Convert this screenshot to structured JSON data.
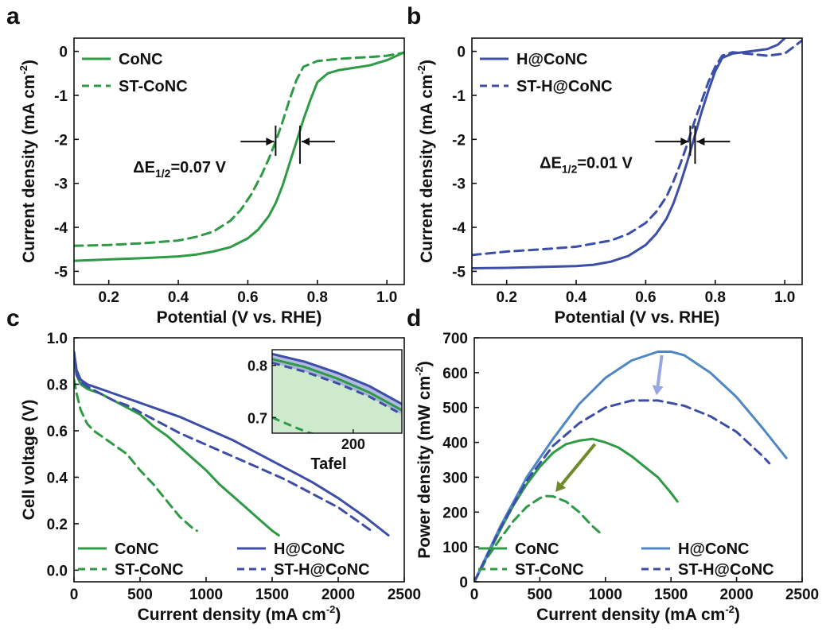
{
  "colors": {
    "green": "#2f9a45",
    "blue": "#3d4ea8",
    "blue_light": "#4f86c6",
    "arrow_green": "#6f8a2a",
    "arrow_blue": "#9aa6e0",
    "fill_green": "#c9e8c6",
    "fill_blue": "#9aa4d8",
    "axis": "#111111"
  },
  "chart_data": [
    {
      "panel": "a",
      "type": "line",
      "xlabel": "Potential (V vs. RHE)",
      "ylabel": "Current density (mA cm-2)",
      "ylabel_main": "Current density (mA cm",
      "ylabel_sup": "-2",
      "ylabel_tail": ")",
      "xlim": [
        0.1,
        1.05
      ],
      "ylim": [
        -5.3,
        0.3
      ],
      "xticks": [
        0.2,
        0.4,
        0.6,
        0.8,
        1.0
      ],
      "xtick_labels": [
        "0.2",
        "0.4",
        "0.6",
        "0.8",
        "1.0"
      ],
      "yticks": [
        0,
        -1,
        -2,
        -3,
        -4,
        -5
      ],
      "ytick_labels": [
        "0",
        "-1",
        "-2",
        "-3",
        "-4",
        "-5"
      ],
      "legend_position": "top-left",
      "annotation": {
        "prefix": "ΔE",
        "sub": "1/2",
        "suffix": "=0.07 V",
        "e1": 0.68,
        "e2": 0.75,
        "y": -2.05,
        "label_x": 0.27,
        "label_y": -2.75
      },
      "series": [
        {
          "name": "CoNC",
          "color": "#2f9a45",
          "dash": false,
          "x": [
            0.1,
            0.2,
            0.3,
            0.4,
            0.45,
            0.5,
            0.55,
            0.6,
            0.63,
            0.66,
            0.68,
            0.7,
            0.72,
            0.74,
            0.75,
            0.76,
            0.78,
            0.8,
            0.83,
            0.86,
            0.9,
            0.95,
            1.0,
            1.05
          ],
          "y": [
            -4.76,
            -4.73,
            -4.7,
            -4.66,
            -4.62,
            -4.55,
            -4.45,
            -4.25,
            -4.05,
            -3.75,
            -3.45,
            -3.05,
            -2.55,
            -2.05,
            -1.8,
            -1.55,
            -1.1,
            -0.7,
            -0.5,
            -0.43,
            -0.38,
            -0.32,
            -0.2,
            -0.02
          ]
        },
        {
          "name": "ST-CoNC",
          "color": "#2f9a45",
          "dash": true,
          "x": [
            0.1,
            0.2,
            0.3,
            0.4,
            0.45,
            0.5,
            0.55,
            0.58,
            0.61,
            0.64,
            0.66,
            0.68,
            0.7,
            0.72,
            0.74,
            0.76,
            0.8,
            0.85,
            0.9,
            0.95,
            1.0,
            1.05
          ],
          "y": [
            -4.42,
            -4.4,
            -4.36,
            -4.3,
            -4.22,
            -4.1,
            -3.85,
            -3.6,
            -3.25,
            -2.8,
            -2.45,
            -2.05,
            -1.6,
            -1.1,
            -0.65,
            -0.35,
            -0.22,
            -0.18,
            -0.15,
            -0.13,
            -0.1,
            -0.03
          ]
        }
      ]
    },
    {
      "panel": "b",
      "type": "line",
      "xlabel": "Potential (V vs. RHE)",
      "ylabel": "Current density (mA cm-2)",
      "ylabel_main": "Current density (mA cm",
      "ylabel_sup": "-2",
      "ylabel_tail": ")",
      "xlim": [
        0.1,
        1.05
      ],
      "ylim": [
        -5.3,
        0.3
      ],
      "xticks": [
        0.2,
        0.4,
        0.6,
        0.8,
        1.0
      ],
      "xtick_labels": [
        "0.2",
        "0.4",
        "0.6",
        "0.8",
        "1.0"
      ],
      "yticks": [
        0,
        -1,
        -2,
        -3,
        -4,
        -5
      ],
      "ytick_labels": [
        "0",
        "-1",
        "-2",
        "-3",
        "-4",
        "-5"
      ],
      "legend_position": "top-left",
      "annotation": {
        "prefix": "ΔE",
        "sub": "1/2",
        "suffix": "=0.01 V",
        "e1": 0.728,
        "e2": 0.742,
        "y": -2.05,
        "label_x": 0.295,
        "label_y": -2.65
      },
      "series": [
        {
          "name": "H@CoNC",
          "color": "#3d4ea8",
          "dash": false,
          "x": [
            0.1,
            0.2,
            0.3,
            0.4,
            0.45,
            0.5,
            0.55,
            0.6,
            0.63,
            0.66,
            0.68,
            0.7,
            0.72,
            0.74,
            0.76,
            0.78,
            0.8,
            0.82,
            0.85,
            0.9,
            0.95,
            0.98,
            1.0,
            1.02
          ],
          "y": [
            -4.93,
            -4.92,
            -4.9,
            -4.88,
            -4.85,
            -4.78,
            -4.65,
            -4.4,
            -4.15,
            -3.8,
            -3.45,
            -3.0,
            -2.5,
            -1.95,
            -1.4,
            -0.9,
            -0.45,
            -0.15,
            -0.05,
            0.0,
            0.05,
            0.15,
            0.3,
            0.48
          ]
        },
        {
          "name": "ST-H@CoNC",
          "color": "#3d4ea8",
          "dash": true,
          "x": [
            0.1,
            0.2,
            0.3,
            0.4,
            0.5,
            0.55,
            0.6,
            0.63,
            0.66,
            0.68,
            0.7,
            0.72,
            0.74,
            0.76,
            0.78,
            0.8,
            0.82,
            0.85,
            0.9,
            0.95,
            1.0,
            1.05
          ],
          "y": [
            -4.63,
            -4.55,
            -4.5,
            -4.44,
            -4.3,
            -4.15,
            -3.9,
            -3.65,
            -3.3,
            -2.95,
            -2.55,
            -2.1,
            -1.6,
            -1.15,
            -0.7,
            -0.35,
            -0.1,
            -0.02,
            -0.06,
            -0.1,
            -0.05,
            0.25
          ]
        }
      ]
    },
    {
      "panel": "c",
      "type": "line",
      "xlabel": "Current density (mA cm-2)",
      "ylabel": "Cell voltage (V)",
      "xlabel_main": "Current density (mA cm",
      "xlabel_sup": "-2",
      "xlabel_tail": ")",
      "xlim": [
        0,
        2500
      ],
      "ylim": [
        -0.05,
        1.0
      ],
      "xticks": [
        0,
        500,
        1000,
        1500,
        2000,
        2500
      ],
      "xtick_labels": [
        "0",
        "500",
        "1000",
        "1500",
        "2000",
        "2500"
      ],
      "yticks": [
        0.0,
        0.2,
        0.4,
        0.6,
        0.8,
        1.0
      ],
      "ytick_labels": [
        "0.0",
        "0.2",
        "0.4",
        "0.6",
        "0.8",
        "1.0"
      ],
      "legend_position": "bottom",
      "inset": {
        "label": "Tafel",
        "xlim": [
          0,
          320
        ],
        "ylim": [
          0.67,
          0.83
        ],
        "yticks": [
          0.7,
          0.8
        ],
        "ytick_labels": [
          "0.7",
          "0.8"
        ],
        "xticks": [
          200
        ],
        "xtick_labels": [
          "200"
        ]
      },
      "series": [
        {
          "name": "CoNC",
          "color": "#2f9a45",
          "dash": false,
          "x": [
            0,
            20,
            50,
            100,
            200,
            300,
            400,
            500,
            600,
            700,
            800,
            900,
            1000,
            1100,
            1200,
            1300,
            1400,
            1500,
            1550
          ],
          "y": [
            0.92,
            0.84,
            0.8,
            0.78,
            0.76,
            0.73,
            0.7,
            0.67,
            0.62,
            0.58,
            0.53,
            0.48,
            0.43,
            0.37,
            0.32,
            0.27,
            0.22,
            0.17,
            0.15
          ]
        },
        {
          "name": "ST-CoNC",
          "color": "#2f9a45",
          "dash": true,
          "x": [
            0,
            20,
            50,
            100,
            150,
            200,
            300,
            400,
            500,
            600,
            700,
            800,
            900,
            930
          ],
          "y": [
            0.82,
            0.76,
            0.69,
            0.63,
            0.6,
            0.58,
            0.54,
            0.5,
            0.43,
            0.37,
            0.3,
            0.23,
            0.18,
            0.17
          ]
        },
        {
          "name": "H@CoNC",
          "color": "#3d4ea8",
          "dash": false,
          "x": [
            0,
            20,
            50,
            100,
            200,
            400,
            600,
            800,
            1000,
            1200,
            1400,
            1600,
            1800,
            2000,
            2200,
            2380
          ],
          "y": [
            0.94,
            0.86,
            0.82,
            0.8,
            0.78,
            0.74,
            0.7,
            0.66,
            0.61,
            0.56,
            0.5,
            0.44,
            0.38,
            0.31,
            0.23,
            0.15
          ]
        },
        {
          "name": "ST-H@CoNC",
          "color": "#3d4ea8",
          "dash": true,
          "x": [
            0,
            20,
            50,
            100,
            200,
            300,
            400,
            600,
            800,
            1000,
            1200,
            1400,
            1600,
            1800,
            2000,
            2200,
            2250
          ],
          "y": [
            0.92,
            0.84,
            0.81,
            0.79,
            0.76,
            0.73,
            0.71,
            0.65,
            0.59,
            0.54,
            0.49,
            0.44,
            0.39,
            0.33,
            0.27,
            0.19,
            0.17
          ]
        }
      ],
      "inset_series": [
        {
          "name": "H@CoNC",
          "color": "#3d4ea8",
          "dash": false,
          "x": [
            0,
            80,
            160,
            240,
            320
          ],
          "y": [
            0.822,
            0.807,
            0.786,
            0.76,
            0.726
          ]
        },
        {
          "name": "ST-H@CoNC",
          "color": "#3d4ea8",
          "dash": true,
          "x": [
            0,
            80,
            160,
            240,
            320
          ],
          "y": [
            0.805,
            0.788,
            0.766,
            0.74,
            0.706
          ]
        },
        {
          "name": "CoNC",
          "color": "#2f9a45",
          "dash": false,
          "x": [
            0,
            80,
            160,
            240,
            320
          ],
          "y": [
            0.812,
            0.797,
            0.775,
            0.748,
            0.714
          ]
        },
        {
          "name": "ST-CoNC",
          "color": "#2f9a45",
          "dash": true,
          "x": [
            0,
            30,
            60,
            90,
            110
          ],
          "y": [
            0.7,
            0.69,
            0.68,
            0.671,
            0.667
          ]
        }
      ]
    },
    {
      "panel": "d",
      "type": "line",
      "xlabel": "Current density (mA cm-2)",
      "ylabel": "Power density (mW cm-2)",
      "xlabel_main": "Current density (mA cm",
      "xlabel_sup": "-2",
      "xlabel_tail": ")",
      "ylabel_main": "Power density (mW cm",
      "ylabel_sup": "-2",
      "ylabel_tail": ")",
      "xlim": [
        0,
        2500
      ],
      "ylim": [
        0,
        700
      ],
      "xticks": [
        0,
        500,
        1000,
        1500,
        2000,
        2500
      ],
      "xtick_labels": [
        "0",
        "500",
        "1000",
        "1500",
        "2000",
        "2500"
      ],
      "yticks": [
        0,
        100,
        200,
        300,
        400,
        500,
        600,
        700
      ],
      "ytick_labels": [
        "0",
        "100",
        "200",
        "300",
        "400",
        "500",
        "600",
        "700"
      ],
      "legend_position": "bottom",
      "series": [
        {
          "name": "CoNC",
          "color": "#2f9a45",
          "dash": false,
          "x": [
            0,
            100,
            200,
            300,
            400,
            500,
            600,
            700,
            800,
            900,
            1000,
            1100,
            1200,
            1300,
            1400,
            1500,
            1550
          ],
          "y": [
            0,
            75,
            150,
            220,
            280,
            330,
            370,
            395,
            405,
            410,
            400,
            385,
            360,
            330,
            300,
            255,
            230
          ]
        },
        {
          "name": "ST-CoNC",
          "color": "#2f9a45",
          "dash": true,
          "x": [
            0,
            100,
            200,
            300,
            400,
            500,
            550,
            600,
            700,
            800,
            900,
            960
          ],
          "y": [
            0,
            70,
            125,
            175,
            215,
            240,
            246,
            245,
            230,
            200,
            160,
            140
          ]
        },
        {
          "name": "H@CoNC",
          "color": "#4f86c6",
          "dash": false,
          "x": [
            0,
            200,
            400,
            600,
            800,
            1000,
            1200,
            1400,
            1500,
            1600,
            1800,
            2000,
            2200,
            2380
          ],
          "y": [
            0,
            160,
            300,
            410,
            510,
            585,
            635,
            660,
            660,
            650,
            600,
            530,
            440,
            355
          ]
        },
        {
          "name": "ST-H@CoNC",
          "color": "#3d4ea8",
          "dash": true,
          "x": [
            0,
            200,
            400,
            600,
            800,
            1000,
            1200,
            1400,
            1600,
            1800,
            2000,
            2200,
            2250
          ],
          "y": [
            0,
            155,
            290,
            390,
            455,
            500,
            520,
            520,
            505,
            475,
            430,
            360,
            340
          ]
        }
      ],
      "arrows": [
        {
          "color": "#9aa6e0",
          "from": [
            1430,
            650
          ],
          "to": [
            1390,
            535
          ]
        },
        {
          "color": "#6f8a2a",
          "from": [
            920,
            395
          ],
          "to": [
            620,
            258
          ]
        }
      ]
    }
  ]
}
